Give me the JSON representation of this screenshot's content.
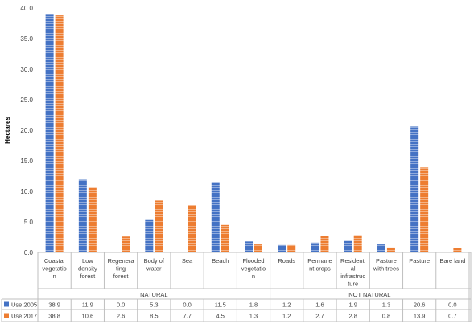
{
  "chart_data": {
    "type": "bar",
    "ylabel": "Hectares",
    "xlabel": "",
    "ylim": [
      0,
      40
    ],
    "yticks": [
      "0.0",
      "5.0",
      "10.0",
      "15.0",
      "20.0",
      "25.0",
      "30.0",
      "35.0",
      "40.0"
    ],
    "grid": false,
    "legend": "table-left",
    "categories": [
      [
        "Coastal",
        "vegetatio",
        "n"
      ],
      [
        "Low",
        "density",
        "forest"
      ],
      [
        "Regenera",
        "ting",
        "forest"
      ],
      [
        "Body of",
        "water"
      ],
      [
        "Sea"
      ],
      [
        "Beach"
      ],
      [
        "Flooded",
        "vegetatio",
        "n"
      ],
      [
        "Roads"
      ],
      [
        "Permane",
        "nt crops"
      ],
      [
        "Residenti",
        "al",
        "infrastruc",
        "ture"
      ],
      [
        "Pasture",
        "with trees"
      ],
      [
        "Pasture"
      ],
      [
        "Bare land"
      ]
    ],
    "groups": [
      {
        "label": "NATURAL",
        "start": 0,
        "end": 6
      },
      {
        "label": "NOT NATURAL",
        "start": 7,
        "end": 12
      }
    ],
    "series": [
      {
        "name": "Use 2005",
        "color": "#4472C4",
        "values": [
          38.9,
          11.9,
          0.0,
          5.3,
          0.0,
          11.5,
          1.8,
          1.2,
          1.6,
          1.9,
          1.3,
          20.6,
          0.0
        ],
        "labels": [
          "38.9",
          "11.9",
          "0.0",
          "5.3",
          "0.0",
          "11.5",
          "1.8",
          "1.2",
          "1.6",
          "1.9",
          "1.3",
          "20.6",
          "0.0"
        ]
      },
      {
        "name": "Use 2017",
        "color": "#ED7D31",
        "values": [
          38.8,
          10.6,
          2.6,
          8.5,
          7.7,
          4.5,
          1.3,
          1.2,
          2.7,
          2.8,
          0.8,
          13.9,
          0.7
        ],
        "labels": [
          "38.8",
          "10.6",
          "2.6",
          "8.5",
          "7.7",
          "4.5",
          "1.3",
          "1.2",
          "2.7",
          "2.8",
          "0.8",
          "13.9",
          "0.7"
        ]
      }
    ]
  }
}
